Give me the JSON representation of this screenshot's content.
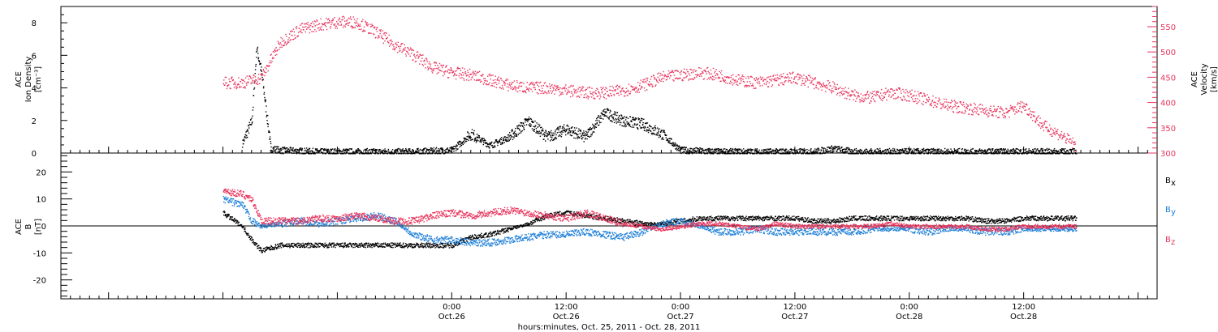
{
  "chart_data": [
    {
      "type": "scatter",
      "panel": "top",
      "ylabel_left": [
        "ACE",
        "Ion Density",
        "[cm⁻³]"
      ],
      "ylabel_right": [
        "ACE",
        "Velocity",
        "[km/s]"
      ],
      "ylim_left": [
        0,
        9
      ],
      "ylim_right": [
        300,
        590
      ],
      "yticks_left": [
        "0",
        "2",
        "4",
        "6",
        "8"
      ],
      "yticks_right": [
        "300",
        "350",
        "400",
        "450",
        "500",
        "550"
      ],
      "colors": {
        "density": "#000000",
        "velocity": "#e8345c"
      },
      "series": [
        {
          "name": "",
          "axis": "left",
          "color": "#000000",
          "x_hours": [
            2,
            3,
            3.5,
            4,
            5,
            6,
            8,
            10,
            15,
            20,
            24,
            26,
            28,
            30,
            32,
            34,
            36,
            38,
            40,
            42,
            44,
            46,
            48,
            50,
            52,
            54,
            56,
            58,
            60,
            62,
            64,
            66,
            68,
            70,
            72,
            74,
            76,
            78,
            80,
            82,
            84,
            86,
            88,
            89.5
          ],
          "y": [
            0.6,
            2.0,
            6.5,
            5.0,
            0.3,
            0.2,
            0.15,
            0.1,
            0.1,
            0.1,
            0.2,
            1.2,
            0.5,
            1.0,
            2.0,
            1.0,
            1.5,
            1.0,
            2.5,
            2.0,
            1.8,
            1.2,
            0.2,
            0.15,
            0.1,
            0.1,
            0.1,
            0.1,
            0.1,
            0.1,
            0.3,
            0.1,
            0.1,
            0.1,
            0.1,
            0.1,
            0.1,
            0.1,
            0.1,
            0.1,
            0.1,
            0.1,
            0.1,
            0.1
          ]
        },
        {
          "name": "",
          "axis": "right",
          "color": "#e8345c",
          "x_hours": [
            0,
            2,
            4,
            6,
            8,
            10,
            12,
            14,
            16,
            18,
            20,
            22,
            24,
            26,
            28,
            30,
            32,
            34,
            36,
            38,
            40,
            42,
            44,
            46,
            48,
            50,
            52,
            54,
            56,
            58,
            60,
            62,
            64,
            66,
            68,
            70,
            72,
            74,
            76,
            78,
            80,
            82,
            84,
            86,
            88,
            89.5
          ],
          "y": [
            440,
            440,
            450,
            520,
            545,
            555,
            560,
            560,
            540,
            515,
            495,
            470,
            460,
            455,
            445,
            435,
            430,
            430,
            425,
            420,
            420,
            425,
            435,
            450,
            455,
            460,
            455,
            445,
            440,
            445,
            450,
            440,
            430,
            415,
            410,
            420,
            415,
            405,
            395,
            390,
            385,
            380,
            395,
            355,
            335,
            315
          ]
        }
      ]
    },
    {
      "type": "scatter",
      "panel": "bottom",
      "ylabel_left": [
        "ACE",
        "B",
        "[nT]"
      ],
      "ylim": [
        -27,
        27
      ],
      "yticks": [
        "-20",
        "-10",
        "0",
        "10",
        "20"
      ],
      "zero_line": true,
      "legend": [
        "Bx",
        "By",
        "Bz"
      ],
      "legend_placement": "right",
      "series": [
        {
          "name": "Bx",
          "color": "#000000",
          "x_hours": [
            0,
            2,
            3,
            4,
            6,
            8,
            10,
            12,
            14,
            16,
            18,
            20,
            22,
            24,
            26,
            28,
            30,
            32,
            34,
            36,
            38,
            40,
            42,
            44,
            46,
            48,
            50,
            52,
            54,
            56,
            58,
            60,
            62,
            64,
            66,
            68,
            70,
            72,
            74,
            76,
            78,
            80,
            82,
            84,
            86,
            88,
            89.5
          ],
          "y": [
            5,
            0,
            -5,
            -9,
            -7,
            -7,
            -7,
            -7,
            -7,
            -7,
            -7,
            -7,
            -7,
            -7,
            -4,
            -3,
            -1,
            1,
            4,
            5,
            4,
            3,
            2,
            1,
            1,
            2,
            3,
            3,
            3,
            3,
            3,
            3,
            2,
            2,
            3,
            3,
            3,
            3,
            3,
            3,
            3,
            2,
            2,
            3,
            3,
            3,
            3
          ]
        },
        {
          "name": "By",
          "color": "#1e7fd8",
          "x_hours": [
            0,
            2,
            3,
            4,
            6,
            8,
            10,
            12,
            14,
            16,
            18,
            20,
            22,
            24,
            26,
            28,
            30,
            32,
            34,
            36,
            38,
            40,
            42,
            44,
            46,
            48,
            50,
            52,
            54,
            56,
            58,
            60,
            62,
            64,
            66,
            68,
            70,
            72,
            74,
            76,
            78,
            80,
            82,
            84,
            86,
            88,
            89.5
          ],
          "y": [
            10,
            8,
            2,
            0,
            1,
            2,
            1,
            2,
            3,
            4,
            2,
            -3,
            -5,
            -5,
            -6,
            -6,
            -5,
            -4,
            -3,
            -3,
            -2,
            -3,
            -4,
            -2,
            1,
            2,
            0,
            -2,
            -2,
            -1,
            -2,
            -2,
            -2,
            -2,
            -2,
            -1,
            -1,
            -1,
            -2,
            -1,
            -1,
            -2,
            -2,
            -1,
            -1,
            -1,
            -1
          ]
        },
        {
          "name": "Bz",
          "color": "#e8345c",
          "x_hours": [
            0,
            2,
            3,
            4,
            6,
            8,
            10,
            12,
            14,
            16,
            18,
            20,
            22,
            24,
            26,
            28,
            30,
            32,
            34,
            36,
            38,
            40,
            42,
            44,
            46,
            48,
            50,
            52,
            54,
            56,
            58,
            60,
            62,
            64,
            66,
            68,
            70,
            72,
            74,
            76,
            78,
            80,
            82,
            84,
            86,
            88,
            89.5
          ],
          "y": [
            13,
            12,
            10,
            2,
            2,
            2,
            3,
            3,
            4,
            3,
            2,
            2,
            4,
            5,
            4,
            5,
            6,
            5,
            4,
            3,
            5,
            3,
            1,
            0,
            -1,
            0,
            1,
            1,
            0,
            -1,
            1,
            0,
            0,
            0,
            0,
            0,
            1,
            0,
            0,
            0,
            0,
            -1,
            -1,
            0,
            0,
            0,
            0
          ]
        }
      ]
    }
  ],
  "x_axis": {
    "range_hours_since_oct25_0000": [
      -17,
      98
    ],
    "tick_labels": [
      {
        "time": "0:00",
        "date": "Oct.26"
      },
      {
        "time": "12:00",
        "date": "Oct.26"
      },
      {
        "time": "0:00",
        "date": "Oct.27"
      },
      {
        "time": "12:00",
        "date": "Oct.27"
      },
      {
        "time": "0:00",
        "date": "Oct.28"
      },
      {
        "time": "12:00",
        "date": "Oct.28"
      }
    ],
    "title": "hours:minutes, Oct. 25, 2011 - Oct. 28, 2011"
  },
  "legend_labels": {
    "bx": {
      "main": "B",
      "sub": "x",
      "color": "#000000"
    },
    "by": {
      "main": "B",
      "sub": "y",
      "color": "#1e7fd8"
    },
    "bz": {
      "main": "B",
      "sub": "z",
      "color": "#e8345c"
    }
  }
}
